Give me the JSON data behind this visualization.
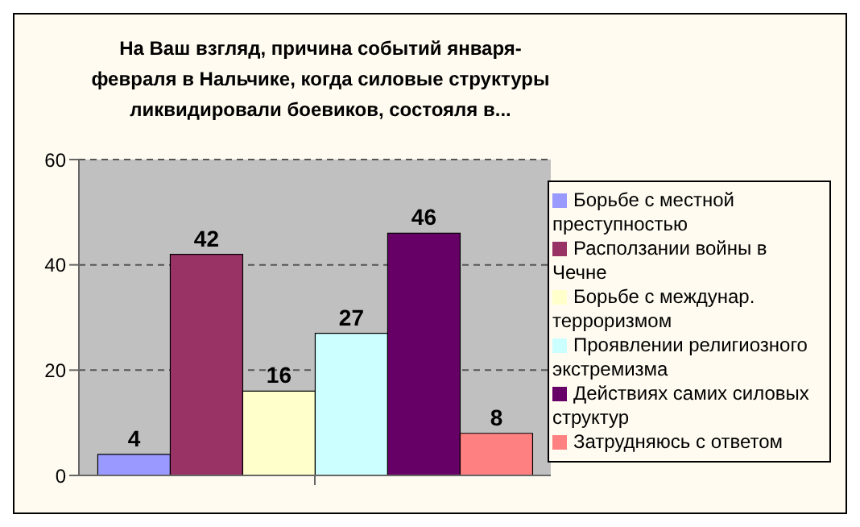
{
  "chart_data": {
    "type": "bar",
    "title": "На Ваш взгляд, причина событий января-февраля в Нальчике, когда силовые структуры ликвидировали боевиков, состояля в...",
    "categories": [
      null
    ],
    "series": [
      {
        "name": "Борьбе с местной преступностью",
        "color": "#9999ff",
        "values": [
          4
        ]
      },
      {
        "name": "Расползании войны в Чечне",
        "color": "#993366",
        "values": [
          42
        ]
      },
      {
        "name": "Борьбе с междунар. терроризмом",
        "color": "#ffffcc",
        "values": [
          16
        ]
      },
      {
        "name": "Проявлении религиозного экстремизма",
        "color": "#ccffff",
        "values": [
          27
        ]
      },
      {
        "name": "Действиях самих силовых структур",
        "color": "#660066",
        "values": [
          46
        ]
      },
      {
        "name": "Затрудняюсь с ответом",
        "color": "#ff8080",
        "values": [
          8
        ]
      }
    ],
    "ylim": [
      0,
      60
    ],
    "yticks": [
      0,
      20,
      40,
      60
    ],
    "grid": "y",
    "legend": "right",
    "data_labels": true
  }
}
